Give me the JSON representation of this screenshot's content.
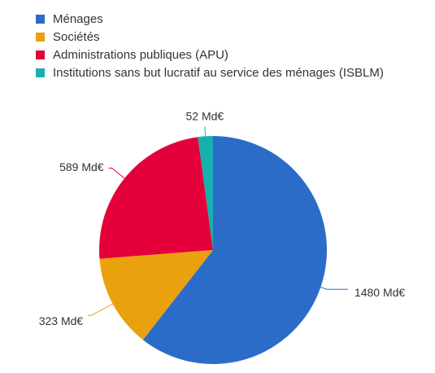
{
  "chart_data": {
    "type": "pie",
    "title": "",
    "legend_position": "top-left",
    "series": [
      {
        "name": "Ménages",
        "value": 1480,
        "label": "1480 Md€",
        "color": "#2b6cc9"
      },
      {
        "name": "Sociétés",
        "value": 323,
        "label": "323 Md€",
        "color": "#e9a20e"
      },
      {
        "name": "Administrations publiques (APU)",
        "value": 589,
        "label": "589 Md€",
        "color": "#e4003a"
      },
      {
        "name": "Institutions sans but lucratif au service des ménages (ISBLM)",
        "value": 52,
        "label": "52 Md€",
        "color": "#17b0ad"
      }
    ]
  }
}
